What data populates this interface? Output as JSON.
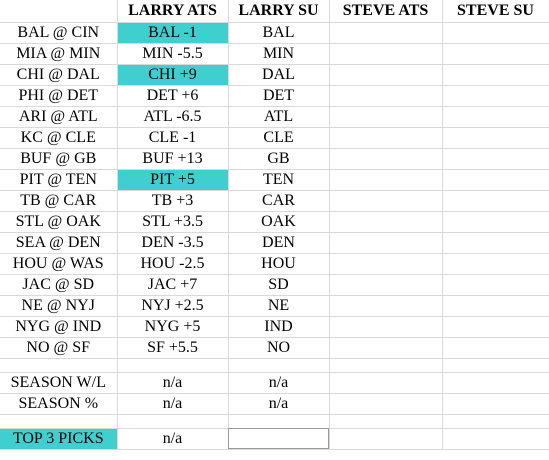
{
  "highlight_color": "#3fcfcf",
  "headers": [
    "",
    "LARRY ATS",
    "LARRY SU",
    "STEVE ATS",
    "STEVE SU"
  ],
  "games": [
    {
      "matchup": "BAL @ CIN",
      "larry_ats": "BAL -1",
      "larry_su": "BAL",
      "steve_ats": "",
      "steve_su": "",
      "highlighted": true
    },
    {
      "matchup": "MIA @ MIN",
      "larry_ats": "MIN -5.5",
      "larry_su": "MIN",
      "steve_ats": "",
      "steve_su": "",
      "highlighted": false
    },
    {
      "matchup": "CHI @ DAL",
      "larry_ats": "CHI +9",
      "larry_su": "DAL",
      "steve_ats": "",
      "steve_su": "",
      "highlighted": true
    },
    {
      "matchup": "PHI @ DET",
      "larry_ats": "DET +6",
      "larry_su": "DET",
      "steve_ats": "",
      "steve_su": "",
      "highlighted": false
    },
    {
      "matchup": "ARI @ ATL",
      "larry_ats": "ATL -6.5",
      "larry_su": "ATL",
      "steve_ats": "",
      "steve_su": "",
      "highlighted": false
    },
    {
      "matchup": "KC @ CLE",
      "larry_ats": "CLE -1",
      "larry_su": "CLE",
      "steve_ats": "",
      "steve_su": "",
      "highlighted": false
    },
    {
      "matchup": "BUF @ GB",
      "larry_ats": "BUF +13",
      "larry_su": "GB",
      "steve_ats": "",
      "steve_su": "",
      "highlighted": false
    },
    {
      "matchup": "PIT @ TEN",
      "larry_ats": "PIT +5",
      "larry_su": "TEN",
      "steve_ats": "",
      "steve_su": "",
      "highlighted": true
    },
    {
      "matchup": "TB @ CAR",
      "larry_ats": "TB +3",
      "larry_su": "CAR",
      "steve_ats": "",
      "steve_su": "",
      "highlighted": false
    },
    {
      "matchup": "STL @ OAK",
      "larry_ats": "STL +3.5",
      "larry_su": "OAK",
      "steve_ats": "",
      "steve_su": "",
      "highlighted": false
    },
    {
      "matchup": "SEA @ DEN",
      "larry_ats": "DEN -3.5",
      "larry_su": "DEN",
      "steve_ats": "",
      "steve_su": "",
      "highlighted": false
    },
    {
      "matchup": "HOU @ WAS",
      "larry_ats": "HOU -2.5",
      "larry_su": "HOU",
      "steve_ats": "",
      "steve_su": "",
      "highlighted": false
    },
    {
      "matchup": "JAC @ SD",
      "larry_ats": "JAC +7",
      "larry_su": "SD",
      "steve_ats": "",
      "steve_su": "",
      "highlighted": false
    },
    {
      "matchup": "NE @ NYJ",
      "larry_ats": "NYJ +2.5",
      "larry_su": "NE",
      "steve_ats": "",
      "steve_su": "",
      "highlighted": false
    },
    {
      "matchup": "NYG @ IND",
      "larry_ats": "NYG +5",
      "larry_su": "IND",
      "steve_ats": "",
      "steve_su": "",
      "highlighted": false
    },
    {
      "matchup": "NO @ SF",
      "larry_ats": "SF +5.5",
      "larry_su": "NO",
      "steve_ats": "",
      "steve_su": "",
      "highlighted": false
    }
  ],
  "summary": [
    {
      "label": "SEASON W/L",
      "larry_ats": "n/a",
      "larry_su": "n/a",
      "steve_ats": "",
      "steve_su": ""
    },
    {
      "label": "SEASON %",
      "larry_ats": "n/a",
      "larry_su": "n/a",
      "steve_ats": "",
      "steve_su": ""
    }
  ],
  "top_picks": {
    "label": "TOP 3 PICKS",
    "larry_ats": "n/a",
    "larry_su": "",
    "steve_ats": "",
    "steve_su": ""
  }
}
